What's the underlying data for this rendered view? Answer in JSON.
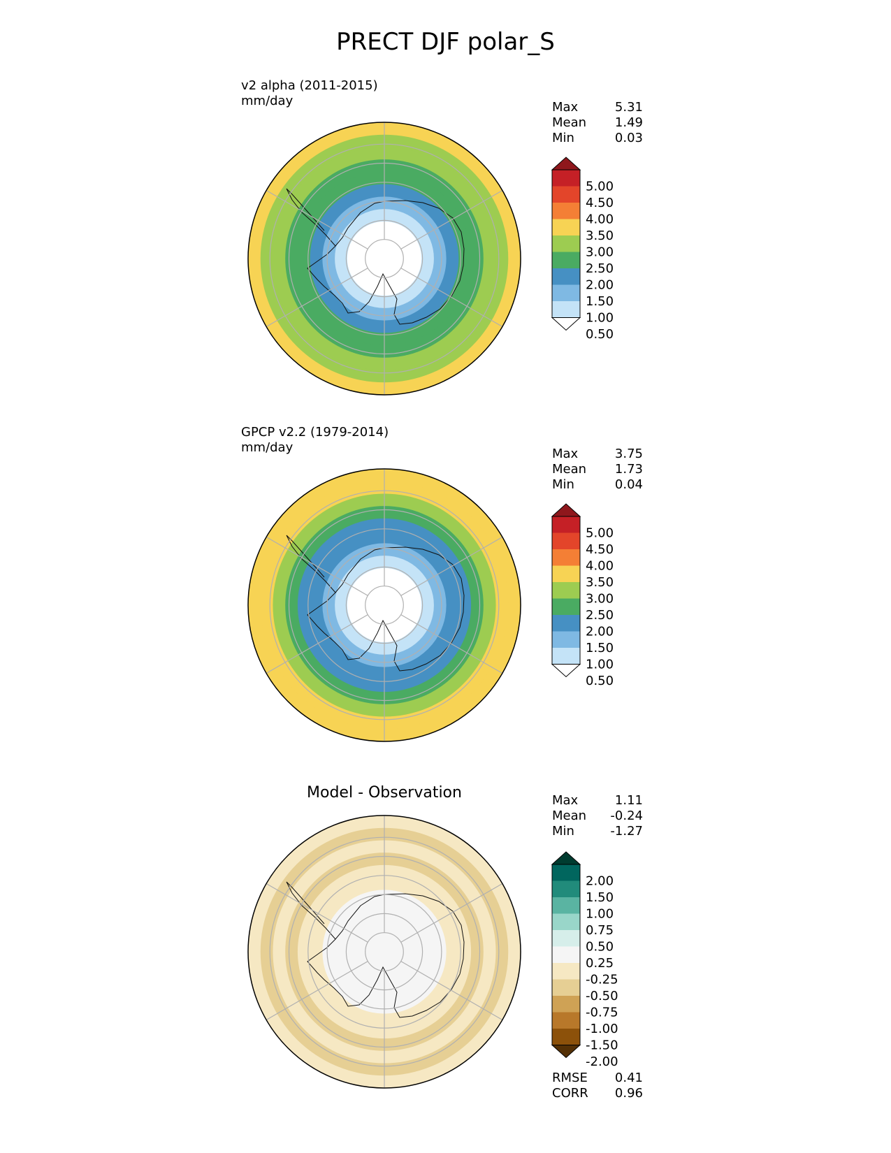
{
  "title": "PRECT DJF polar_S",
  "panels": [
    {
      "name": "v2 alpha (2011-2015)",
      "units": "mm/day",
      "stats": {
        "max_label": "Max",
        "max": "5.31",
        "mean_label": "Mean",
        "mean": "1.49",
        "min_label": "Min",
        "min": "0.03"
      },
      "colorbar": {
        "levels": [
          "0.50",
          "1.00",
          "1.50",
          "2.00",
          "2.50",
          "3.00",
          "3.50",
          "4.00",
          "4.50",
          "5.00"
        ],
        "colors": [
          "#ffffff",
          "#c4e3f7",
          "#7fb9e3",
          "#4690c3",
          "#4aab62",
          "#9dcc51",
          "#f7d354",
          "#f47f35",
          "#e3452a",
          "#c52026",
          "#8f171c"
        ]
      }
    },
    {
      "name": "GPCP v2.2 (1979-2014)",
      "units": "mm/day",
      "stats": {
        "max_label": "Max",
        "max": "3.75",
        "mean_label": "Mean",
        "mean": "1.73",
        "min_label": "Min",
        "min": "0.04"
      },
      "colorbar": {
        "levels": [
          "0.50",
          "1.00",
          "1.50",
          "2.00",
          "2.50",
          "3.00",
          "3.50",
          "4.00",
          "4.50",
          "5.00"
        ],
        "colors": [
          "#ffffff",
          "#c4e3f7",
          "#7fb9e3",
          "#4690c3",
          "#4aab62",
          "#9dcc51",
          "#f7d354",
          "#f47f35",
          "#e3452a",
          "#c52026",
          "#8f171c"
        ]
      }
    },
    {
      "name": "Model - Observation",
      "stats": {
        "max_label": "Max",
        "max": "1.11",
        "mean_label": "Mean",
        "mean": "-0.24",
        "min_label": "Min",
        "min": "-1.27"
      },
      "rmse_label": "RMSE",
      "rmse": "0.41",
      "corr_label": "CORR",
      "corr": "0.96",
      "colorbar": {
        "levels": [
          "-2.00",
          "-1.50",
          "-1.00",
          "-0.75",
          "-0.50",
          "-0.25",
          "0.25",
          "0.50",
          "0.75",
          "1.00",
          "1.50",
          "2.00"
        ],
        "colors": [
          "#543005",
          "#8c510a",
          "#b8782a",
          "#cfa255",
          "#e6cf94",
          "#f6e8c3",
          "#f5f5f5",
          "#d6eeea",
          "#99d6c9",
          "#5ab4a2",
          "#218b7b",
          "#01665e",
          "#003c30"
        ]
      }
    }
  ],
  "chart_data": [
    {
      "type": "heatmap",
      "projection": "south-polar-stereographic",
      "title": "v2 alpha (2011-2015)",
      "units": "mm/day",
      "max": 5.31,
      "mean": 1.49,
      "min": 0.03,
      "contour_levels": [
        0.5,
        1.0,
        1.5,
        2.0,
        2.5,
        3.0,
        3.5,
        4.0,
        4.5,
        5.0
      ],
      "ring_bins_center_to_edge": [
        0,
        0,
        0,
        1,
        2,
        3,
        4,
        4,
        5,
        5,
        6
      ],
      "grid": true
    },
    {
      "type": "heatmap",
      "projection": "south-polar-stereographic",
      "title": "GPCP v2.2 (1979-2014)",
      "units": "mm/day",
      "max": 3.75,
      "mean": 1.73,
      "min": 0.04,
      "contour_levels": [
        0.5,
        1.0,
        1.5,
        2.0,
        2.5,
        3.0,
        3.5,
        4.0,
        4.5,
        5.0
      ],
      "ring_bins_center_to_edge": [
        0,
        0,
        0,
        1,
        2,
        3,
        3,
        4,
        5,
        6,
        6
      ],
      "grid": true
    },
    {
      "type": "heatmap",
      "projection": "south-polar-stereographic",
      "title": "Model - Observation",
      "max": 1.11,
      "mean": -0.24,
      "min": -1.27,
      "rmse": 0.41,
      "corr": 0.96,
      "contour_levels": [
        -2.0,
        -1.5,
        -1.0,
        -0.75,
        -0.5,
        -0.25,
        0.25,
        0.5,
        0.75,
        1.0,
        1.5,
        2.0
      ],
      "ring_bins_center_to_edge": [
        6,
        6,
        6,
        6,
        6,
        5,
        5,
        4,
        5,
        4,
        5
      ],
      "grid": true
    }
  ]
}
